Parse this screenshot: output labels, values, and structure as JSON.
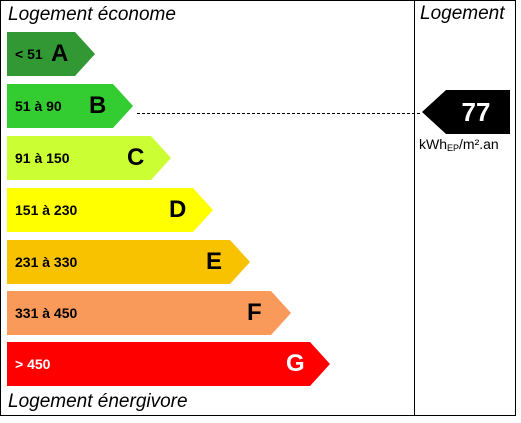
{
  "labels": {
    "top": "Logement économe",
    "bottom": "Logement énergivore",
    "column_header": "Logement"
  },
  "classes": [
    {
      "letter": "A",
      "range": "< 51",
      "color": "#319834",
      "text_color": "#000000"
    },
    {
      "letter": "B",
      "range": "51 à 90",
      "color": "#33cc31",
      "text_color": "#000000"
    },
    {
      "letter": "C",
      "range": "91 à 150",
      "color": "#cbff33",
      "text_color": "#000000"
    },
    {
      "letter": "D",
      "range": "151 à 230",
      "color": "#ffff00",
      "text_color": "#000000"
    },
    {
      "letter": "E",
      "range": "231 à 330",
      "color": "#f8c200",
      "text_color": "#000000"
    },
    {
      "letter": "F",
      "range": "331 à 450",
      "color": "#fa9a5a",
      "text_color": "#000000"
    },
    {
      "letter": "G",
      "range": "> 450",
      "color": "#ff0000",
      "text_color": "#ffffff"
    }
  ],
  "rating": {
    "value": "77",
    "class": "B",
    "unit_main": "kWh",
    "unit_sub": "EP",
    "unit_rest": "/m².an",
    "marker_color": "#000000"
  }
}
